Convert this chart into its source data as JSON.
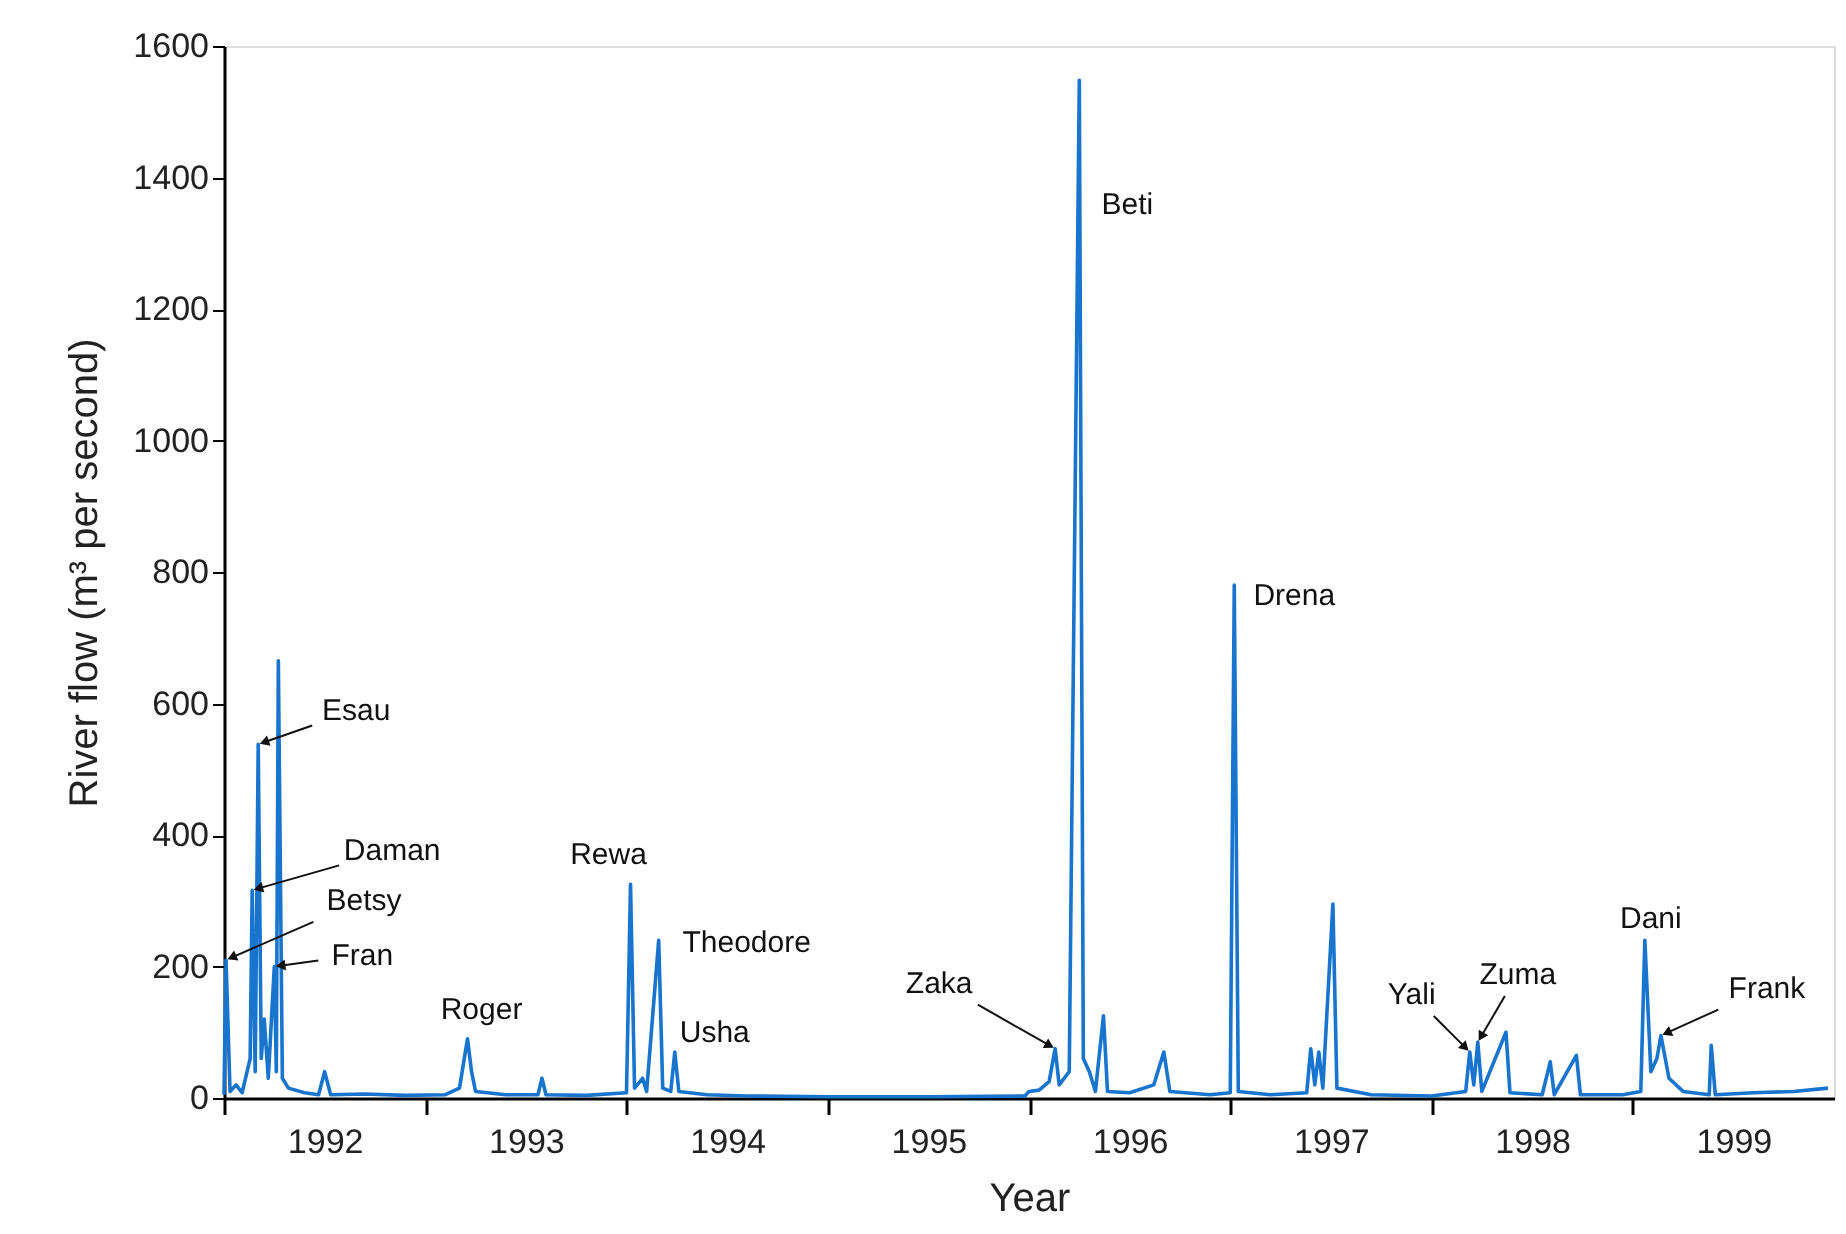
{
  "chart_data": {
    "type": "line",
    "xlabel": "Year",
    "ylabel": "River flow (m³ per second)",
    "xlim": [
      1992,
      2000
    ],
    "ylim": [
      0,
      1600
    ],
    "xticks": [
      {
        "value": 1992,
        "label": null
      },
      {
        "value": 1993,
        "label": null
      },
      {
        "value": 1994,
        "label": null
      },
      {
        "value": 1995,
        "label": null
      },
      {
        "value": 1996,
        "label": null
      },
      {
        "value": 1997,
        "label": null
      },
      {
        "value": 1998,
        "label": null
      },
      {
        "value": 1999,
        "label": null
      },
      {
        "value": 1992.5,
        "label": "1992"
      },
      {
        "value": 1993.5,
        "label": "1993"
      },
      {
        "value": 1994.5,
        "label": "1994"
      },
      {
        "value": 1995.5,
        "label": "1995"
      },
      {
        "value": 1996.5,
        "label": "1996"
      },
      {
        "value": 1997.5,
        "label": "1997"
      },
      {
        "value": 1998.5,
        "label": "1998"
      },
      {
        "value": 1999.5,
        "label": "1999"
      }
    ],
    "yticks": [
      0,
      200,
      400,
      600,
      800,
      1000,
      1200,
      1400,
      1600
    ],
    "grid": false,
    "marker": "none",
    "line_style": "solid",
    "series": [
      {
        "color": "#1874cd",
        "x": [
          1992.0,
          1992.01,
          1992.03,
          1992.06,
          1992.09,
          1992.13,
          1992.14,
          1992.155,
          1992.17,
          1992.185,
          1992.2,
          1992.22,
          1992.25,
          1992.26,
          1992.27,
          1992.29,
          1992.32,
          1992.4,
          1992.47,
          1992.5,
          1992.53,
          1992.7,
          1992.9,
          1993.1,
          1993.17,
          1993.21,
          1993.23,
          1993.25,
          1993.4,
          1993.56,
          1993.58,
          1993.6,
          1993.8,
          1994.0,
          1994.02,
          1994.04,
          1994.08,
          1994.1,
          1994.16,
          1994.18,
          1994.22,
          1994.24,
          1994.26,
          1994.4,
          1994.6,
          1995.0,
          1995.5,
          1995.98,
          1996.0,
          1996.05,
          1996.1,
          1996.13,
          1996.15,
          1996.2,
          1996.25,
          1996.27,
          1996.3,
          1996.33,
          1996.37,
          1996.39,
          1996.5,
          1996.62,
          1996.67,
          1996.7,
          1996.9,
          1997.0,
          1997.02,
          1997.04,
          1997.2,
          1997.38,
          1997.4,
          1997.42,
          1997.44,
          1997.46,
          1997.51,
          1997.53,
          1997.7,
          1998.0,
          1998.17,
          1998.19,
          1998.21,
          1998.23,
          1998.25,
          1998.37,
          1998.39,
          1998.55,
          1998.59,
          1998.61,
          1998.72,
          1998.74,
          1998.95,
          1999.04,
          1999.06,
          1999.09,
          1999.12,
          1999.14,
          1999.18,
          1999.25,
          1999.38,
          1999.39,
          1999.41,
          1999.6,
          1999.8,
          1999.97
        ],
        "values": [
          5,
          210,
          10,
          20,
          8,
          60,
          316,
          40,
          538,
          60,
          120,
          30,
          200,
          40,
          665,
          30,
          15,
          8,
          5,
          40,
          5,
          6,
          4,
          5,
          15,
          90,
          40,
          10,
          5,
          5,
          30,
          5,
          4,
          8,
          325,
          15,
          30,
          10,
          240,
          15,
          10,
          70,
          10,
          5,
          3,
          2,
          2,
          3,
          10,
          12,
          25,
          75,
          20,
          40,
          1548,
          60,
          40,
          10,
          125,
          10,
          8,
          20,
          70,
          10,
          5,
          8,
          780,
          10,
          5,
          8,
          75,
          20,
          70,
          15,
          295,
          15,
          5,
          3,
          10,
          70,
          20,
          85,
          10,
          100,
          8,
          5,
          55,
          5,
          65,
          5,
          5,
          10,
          240,
          40,
          60,
          95,
          30,
          10,
          5,
          80,
          5,
          8,
          10,
          15
        ]
      }
    ],
    "annotations": [
      {
        "text": "Esau",
        "x": 1992.17,
        "y": 538
      },
      {
        "text": "Daman",
        "x": 1992.14,
        "y": 316
      },
      {
        "text": "Betsy",
        "x": 1992.01,
        "y": 210
      },
      {
        "text": "Fran",
        "x": 1992.25,
        "y": 200
      },
      {
        "text": "Roger",
        "x": 1993.21,
        "y": 90
      },
      {
        "text": "Rewa",
        "x": 1994.02,
        "y": 325
      },
      {
        "text": "Theodore",
        "x": 1994.16,
        "y": 240
      },
      {
        "text": "Usha",
        "x": 1994.24,
        "y": 70
      },
      {
        "text": "Zaka",
        "x": 1996.13,
        "y": 75
      },
      {
        "text": "Beti",
        "x": 1996.25,
        "y": 1360
      },
      {
        "text": "Drena",
        "x": 1997.02,
        "y": 780
      },
      {
        "text": "Yali",
        "x": 1998.19,
        "y": 70
      },
      {
        "text": "Zuma",
        "x": 1998.23,
        "y": 85
      },
      {
        "text": "Dani",
        "x": 1999.06,
        "y": 240
      },
      {
        "text": "Frank",
        "x": 1999.14,
        "y": 95
      }
    ]
  }
}
